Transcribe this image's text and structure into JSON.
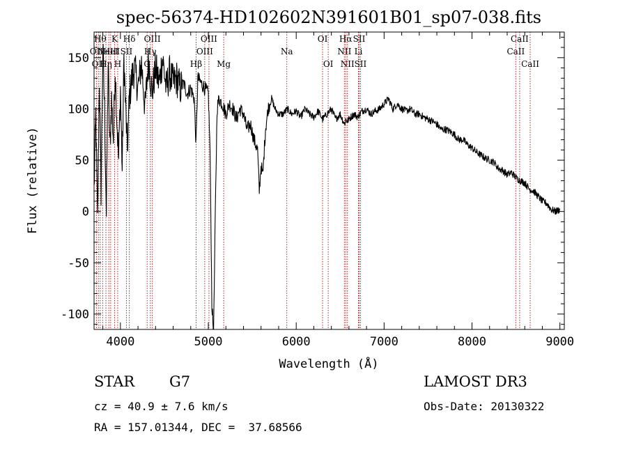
{
  "chart_data": {
    "type": "line",
    "title": "spec-56374-HD102602N391601B01_sp07-038.fits",
    "xlabel": "Wavelength (Å)",
    "ylabel": "Flux (relative)",
    "xlim": [
      3700,
      9050
    ],
    "ylim": [
      -115,
      175
    ],
    "xticks": [
      4000,
      5000,
      6000,
      7000,
      8000,
      9000
    ],
    "yticks": [
      -100,
      -50,
      0,
      50,
      100,
      150
    ],
    "line_color": "#000000",
    "marker_color": "#b22222",
    "series": [
      {
        "name": "flux",
        "x": [
          3700,
          3720,
          3740,
          3760,
          3780,
          3800,
          3820,
          3840,
          3860,
          3880,
          3900,
          3920,
          3940,
          3960,
          3980,
          4000,
          4020,
          4040,
          4060,
          4080,
          4100,
          4130,
          4160,
          4200,
          4240,
          4280,
          4320,
          4360,
          4400,
          4440,
          4480,
          4520,
          4560,
          4600,
          4640,
          4680,
          4720,
          4760,
          4800,
          4840,
          4860,
          4880,
          4920,
          4960,
          5000,
          5020,
          5040,
          5060,
          5080,
          5100,
          5120,
          5160,
          5200,
          5240,
          5280,
          5320,
          5360,
          5400,
          5440,
          5480,
          5520,
          5560,
          5580,
          5600,
          5620,
          5650,
          5680,
          5720,
          5760,
          5800,
          5850,
          5900,
          5950,
          6000,
          6050,
          6100,
          6150,
          6200,
          6250,
          6300,
          6350,
          6400,
          6450,
          6500,
          6550,
          6562,
          6580,
          6620,
          6660,
          6700,
          6750,
          6800,
          6850,
          6900,
          6950,
          7000,
          7050,
          7100,
          7150,
          7200,
          7250,
          7300,
          7350,
          7400,
          7450,
          7500,
          7550,
          7600,
          7650,
          7700,
          7750,
          7800,
          7850,
          7900,
          7950,
          8000,
          8050,
          8100,
          8150,
          8200,
          8250,
          8300,
          8350,
          8400,
          8450,
          8500,
          8550,
          8600,
          8650,
          8700,
          8750,
          8800,
          8850,
          8900,
          8950,
          9000
        ],
        "y": [
          20,
          95,
          -10,
          130,
          20,
          160,
          100,
          -5,
          145,
          60,
          110,
          70,
          140,
          90,
          50,
          120,
          40,
          150,
          100,
          60,
          110,
          130,
          140,
          120,
          145,
          100,
          150,
          115,
          140,
          125,
          150,
          120,
          135,
          125,
          130,
          120,
          125,
          115,
          120,
          110,
          65,
          130,
          125,
          120,
          115,
          60,
          -90,
          -120,
          0,
          100,
          110,
          105,
          95,
          105,
          100,
          90,
          100,
          95,
          80,
          85,
          70,
          60,
          20,
          45,
          35,
          80,
          100,
          110,
          100,
          95,
          95,
          100,
          95,
          98,
          92,
          100,
          95,
          92,
          98,
          90,
          95,
          100,
          90,
          95,
          85,
          90,
          88,
          92,
          95,
          92,
          98,
          100,
          95,
          98,
          100,
          105,
          110,
          100,
          105,
          100,
          98,
          100,
          95,
          95,
          92,
          90,
          88,
          85,
          80,
          80,
          78,
          75,
          70,
          70,
          65,
          62,
          58,
          55,
          52,
          50,
          48,
          42,
          40,
          36,
          38,
          33,
          30,
          28,
          22,
          20,
          15,
          10,
          8,
          2,
          0,
          2
        ]
      }
    ],
    "lines": [
      {
        "w": 3727,
        "label": "OII",
        "row": 2
      },
      {
        "w": 3750,
        "label": "OII",
        "row": 3
      },
      {
        "w": 3770,
        "label": "Hθ",
        "row": 1
      },
      {
        "w": 3798,
        "label": "",
        "row": 0
      },
      {
        "w": 3835,
        "label": "Hη",
        "row": 3
      },
      {
        "w": 3868,
        "label": "NeIII",
        "row": 2
      },
      {
        "w": 3889,
        "label": "HeI",
        "row": 2
      },
      {
        "w": 3934,
        "label": "K",
        "row": 1
      },
      {
        "w": 3969,
        "label": "H",
        "row": 3
      },
      {
        "w": 4068,
        "label": "SII",
        "row": 2
      },
      {
        "w": 4101,
        "label": "Hδ",
        "row": 1
      },
      {
        "w": 4304,
        "label": "G",
        "row": 3
      },
      {
        "w": 4340,
        "label": "Hγ",
        "row": 2
      },
      {
        "w": 4363,
        "label": "OIII",
        "row": 1
      },
      {
        "w": 4861,
        "label": "Hβ",
        "row": 3
      },
      {
        "w": 4959,
        "label": "OIII",
        "row": 2
      },
      {
        "w": 5007,
        "label": "OIII",
        "row": 1
      },
      {
        "w": 5175,
        "label": "Mg",
        "row": 3
      },
      {
        "w": 5893,
        "label": "Na",
        "row": 2
      },
      {
        "w": 6300,
        "label": "OI",
        "row": 1
      },
      {
        "w": 6364,
        "label": "OI",
        "row": 3
      },
      {
        "w": 6548,
        "label": "NII",
        "row": 2
      },
      {
        "w": 6563,
        "label": "Hα",
        "row": 1
      },
      {
        "w": 6583,
        "label": "NII",
        "row": 3
      },
      {
        "w": 6708,
        "label": "Li",
        "row": 2
      },
      {
        "w": 6716,
        "label": "SII",
        "row": 1
      },
      {
        "w": 6731,
        "label": "SII",
        "row": 3
      },
      {
        "w": 8498,
        "label": "CaII",
        "row": 2
      },
      {
        "w": 8542,
        "label": "CaII",
        "row": 1
      },
      {
        "w": 8662,
        "label": "CaII",
        "row": 3
      }
    ]
  },
  "info": {
    "object_type": "STAR",
    "object_class": "G7",
    "survey": "LAMOST DR3",
    "cz": "cz = 40.9 ± 7.6 km/s",
    "obs_date": "Obs-Date: 20130322",
    "radec": "RA = 157.01344, DEC =  37.68566"
  }
}
